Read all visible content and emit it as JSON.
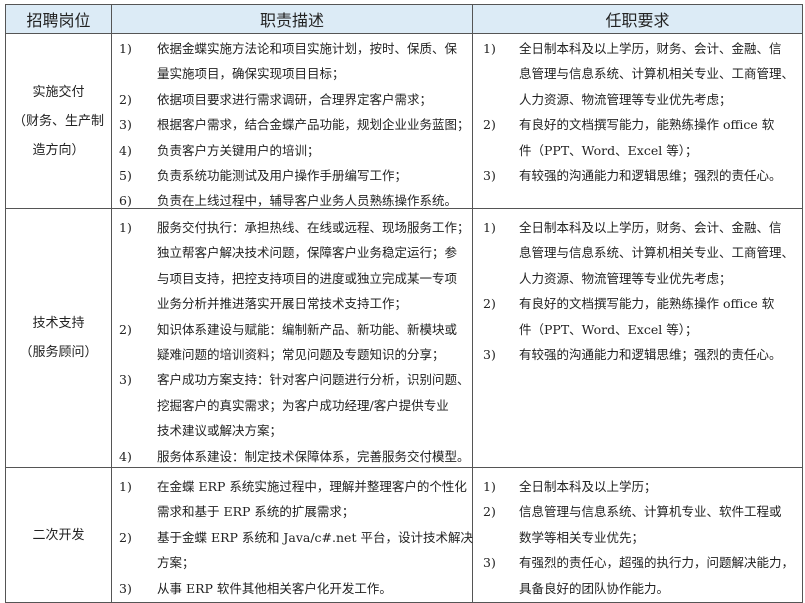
{
  "header": {
    "position": "招聘岗位",
    "duties": "职责描述",
    "requirements": "任职要求"
  },
  "rows": [
    {
      "position": [
        "实施交付",
        "（财务、生产制",
        "造方向）"
      ],
      "duties": [
        {
          "num": "1)",
          "lines": [
            "依据金蝶实施方法论和项目实施计划，按时、保质、保",
            "量实施项目，确保实现项目目标；"
          ]
        },
        {
          "num": "2)",
          "lines": [
            "依据项目要求进行需求调研，合理界定客户需求；"
          ]
        },
        {
          "num": "3)",
          "lines": [
            "根据客户需求，结合金蝶产品功能，规划企业业务蓝图；"
          ]
        },
        {
          "num": "4)",
          "lines": [
            "负责客户方关键用户的培训；"
          ]
        },
        {
          "num": "5)",
          "lines": [
            "负责系统功能测试及用户操作手册编写工作；"
          ]
        },
        {
          "num": "6)",
          "lines": [
            "负责在上线过程中，辅导客户业务人员熟练操作系统。"
          ]
        }
      ],
      "requirements": [
        {
          "num": "1)",
          "lines": [
            "全日制本科及以上学历，财务、会计、金融、信",
            "息管理与信息系统、计算机相关专业、工商管理、",
            "人力资源、物流管理等专业优先考虑；"
          ]
        },
        {
          "num": "2)",
          "lines": [
            "有良好的文档撰写能力，能熟练操作 office 软",
            "件（PPT、Word、Excel 等）；"
          ]
        },
        {
          "num": "3)",
          "lines": [
            "有较强的沟通能力和逻辑思维；强烈的责任心。"
          ]
        }
      ]
    },
    {
      "position": [
        "技术支持",
        "（服务顾问）"
      ],
      "duties": [
        {
          "num": "1)",
          "lines": [
            "服务交付执行：承担热线、在线或远程、现场服务工作；",
            "独立帮客户解决技术问题，保障客户业务稳定运行；参",
            "与项目支持，把控支持项目的进度或独立完成某一专项",
            "业务分析并推进落实开展日常技术支持工作；"
          ]
        },
        {
          "num": "2)",
          "lines": [
            "知识体系建设与赋能：编制新产品、新功能、新模块或",
            "疑难问题的培训资料；常见问题及专题知识的分享；"
          ]
        },
        {
          "num": "3)",
          "lines": [
            "客户成功方案支持：针对客户问题进行分析，识别问题、",
            "挖掘客户的真实需求；为客户成功经理/客户提供专业",
            "技术建议或解决方案；"
          ]
        },
        {
          "num": "4)",
          "lines": [
            "服务体系建设：制定技术保障体系，完善服务交付模型。"
          ]
        }
      ],
      "requirements": [
        {
          "num": "1)",
          "lines": [
            "全日制本科及以上学历，财务、会计、金融、信",
            "息管理与信息系统、计算机相关专业、工商管理、",
            "人力资源、物流管理等专业优先考虑；"
          ]
        },
        {
          "num": "2)",
          "lines": [
            "有良好的文档撰写能力，能熟练操作 office 软",
            "件（PPT、Word、Excel 等）；"
          ]
        },
        {
          "num": "3)",
          "lines": [
            "有较强的沟通能力和逻辑思维；强烈的责任心。"
          ]
        }
      ]
    },
    {
      "position": [
        "二次开发"
      ],
      "duties": [
        {
          "num": "1)",
          "lines": [
            "在金蝶 ERP 系统实施过程中，理解并整理客户的个性化",
            "需求和基于 ERP 系统的扩展需求；"
          ]
        },
        {
          "num": "2)",
          "lines": [
            "基于金蝶 ERP 系统和 Java/c#.net 平台，设计技术解决",
            "方案；"
          ]
        },
        {
          "num": "3)",
          "lines": [
            "从事 ERP 软件其他相关客户化开发工作。"
          ]
        }
      ],
      "requirements": [
        {
          "num": "1)",
          "lines": [
            "全日制本科及以上学历；"
          ]
        },
        {
          "num": "2)",
          "lines": [
            "信息管理与信息系统、计算机专业、软件工程或",
            "数学等相关专业优先；"
          ]
        },
        {
          "num": "3)",
          "lines": [
            "有强烈的责任心，超强的执行力，问题解决能力，",
            "具备良好的团队协作能力。"
          ]
        }
      ]
    }
  ]
}
